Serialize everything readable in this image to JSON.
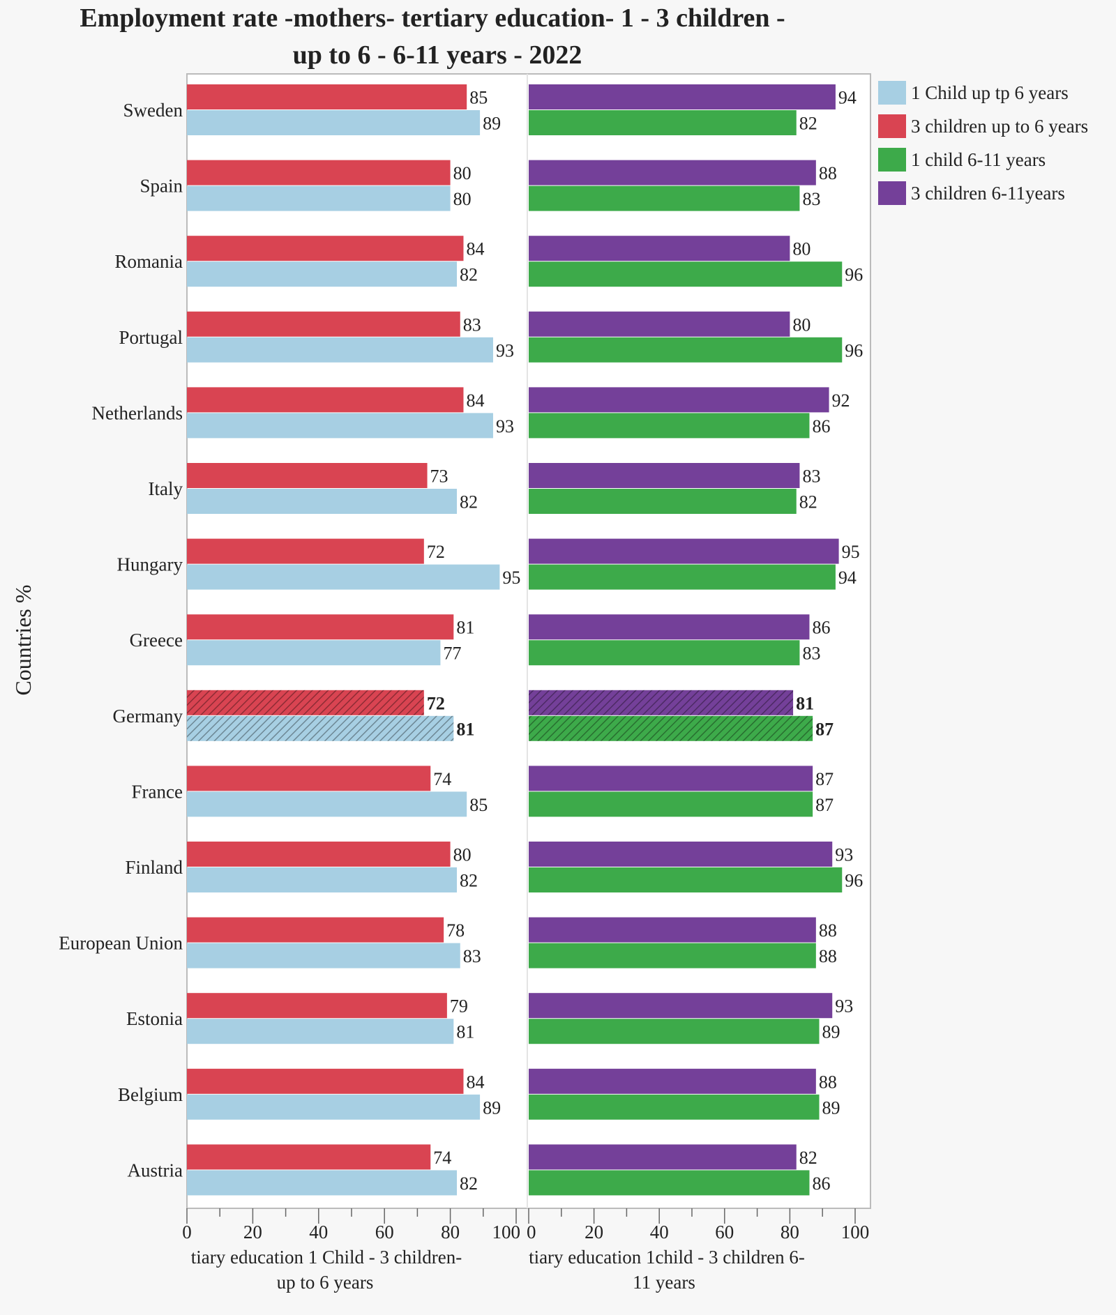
{
  "chart_data": [
    {
      "type": "bar",
      "orientation": "horizontal",
      "title": "Employment rate -mothers- tertiary education- 1 - 3 children - up to 6 - 6-11 years -  2022",
      "ylabel": "Countries %",
      "xlabel": "tiary education 1 Child - 3 children- up to 6 years",
      "xlim": [
        0,
        100
      ],
      "xticks": [
        0,
        20,
        40,
        60,
        80,
        100
      ],
      "categories": [
        "Sweden",
        "Spain",
        "Romania",
        "Portugal",
        "Netherlands",
        "Italy",
        "Hungary",
        "Greece",
        "Germany",
        "France",
        "Finland",
        "European Union",
        "Estonia",
        "Belgium",
        "Austria"
      ],
      "highlighted_category": "Germany",
      "series": [
        {
          "name": "3 children up to 6 years",
          "color": "#d94452",
          "values": [
            85,
            80,
            84,
            83,
            84,
            73,
            72,
            81,
            72,
            74,
            80,
            78,
            79,
            84,
            74
          ]
        },
        {
          "name": "1 Child up tp 6 years",
          "color": "#a7cfe3",
          "values": [
            89,
            80,
            82,
            93,
            93,
            82,
            95,
            77,
            81,
            85,
            82,
            83,
            81,
            89,
            82
          ]
        }
      ]
    },
    {
      "type": "bar",
      "orientation": "horizontal",
      "xlabel": "tiary education 1child - 3 children 6- 11 years",
      "xlim": [
        0,
        100
      ],
      "xticks": [
        0,
        20,
        40,
        60,
        80,
        100
      ],
      "categories": [
        "Sweden",
        "Spain",
        "Romania",
        "Portugal",
        "Netherlands",
        "Italy",
        "Hungary",
        "Greece",
        "Germany",
        "France",
        "Finland",
        "European Union",
        "Estonia",
        "Belgium",
        "Austria"
      ],
      "highlighted_category": "Germany",
      "series": [
        {
          "name": "3 children 6-11years",
          "color": "#744099",
          "values": [
            94,
            88,
            80,
            80,
            92,
            83,
            95,
            86,
            81,
            87,
            93,
            88,
            93,
            88,
            82
          ]
        },
        {
          "name": "1 child 6-11 years",
          "color": "#3daa4a",
          "values": [
            82,
            83,
            96,
            96,
            86,
            82,
            94,
            83,
            87,
            87,
            96,
            88,
            89,
            89,
            86
          ]
        }
      ]
    }
  ],
  "title_lines": [
    "Employment rate -mothers- tertiary education- 1 - 3 children -",
    "up to 6 - 6-11 years -  2022"
  ],
  "ylabel": "Countries %",
  "xlabel_left": [
    "tiary education 1 Child - 3 children-",
    "up to 6 years"
  ],
  "xlabel_right": [
    "tiary education 1child - 3 children 6-",
    "11 years"
  ],
  "legend": {
    "placement": "right",
    "items": [
      {
        "label": "1 Child up tp 6 years",
        "color": "#a7cfe3"
      },
      {
        "label": "3 children up to 6 years",
        "color": "#d94452"
      },
      {
        "label": "1 child 6-11 years",
        "color": "#3daa4a"
      },
      {
        "label": "3 children 6-11years",
        "color": "#744099"
      }
    ]
  }
}
